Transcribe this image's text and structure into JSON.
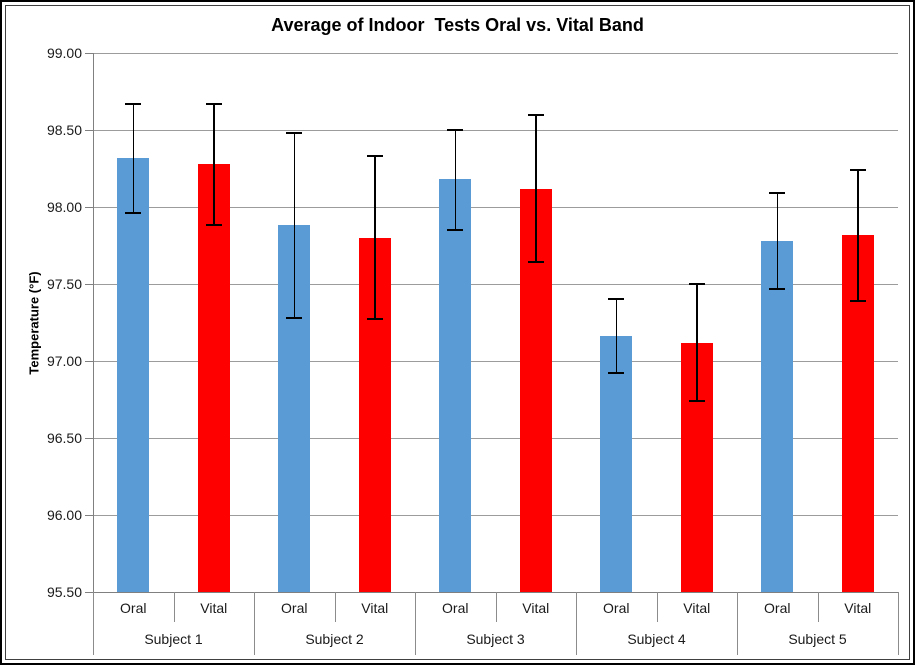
{
  "chart_data": {
    "type": "bar",
    "title": "Average of Indoor  Tests Oral vs. Vital Band",
    "xlabel": "",
    "ylabel": "Temperature (°F)",
    "ylim": [
      95.5,
      99.0
    ],
    "ytick_step": 0.5,
    "yticks": [
      "99.00",
      "98.50",
      "98.00",
      "97.50",
      "97.00",
      "96.50",
      "96.00",
      "95.50"
    ],
    "grid": true,
    "legend": "none",
    "categories": [
      "Subject 1",
      "Subject 2",
      "Subject 3",
      "Subject 4",
      "Subject 5"
    ],
    "bar_labels": [
      "Oral",
      "Vital"
    ],
    "series": [
      {
        "name": "Oral",
        "color": "#5B9BD5",
        "values": [
          98.32,
          97.88,
          98.18,
          97.16,
          97.78
        ],
        "error_low": [
          97.96,
          97.28,
          97.85,
          96.92,
          97.47
        ],
        "error_high": [
          98.67,
          98.48,
          98.5,
          97.4,
          98.09
        ]
      },
      {
        "name": "Vital",
        "color": "#FF0000",
        "values": [
          98.28,
          97.8,
          98.12,
          97.12,
          97.82
        ],
        "error_low": [
          97.88,
          97.27,
          97.64,
          96.74,
          97.39
        ],
        "error_high": [
          98.67,
          98.33,
          98.6,
          97.5,
          98.24
        ]
      }
    ],
    "colors": {
      "gridline": "#9C9C9C",
      "axis": "#808080",
      "error_bar": "#000000",
      "text": "#1A1A1A"
    }
  }
}
